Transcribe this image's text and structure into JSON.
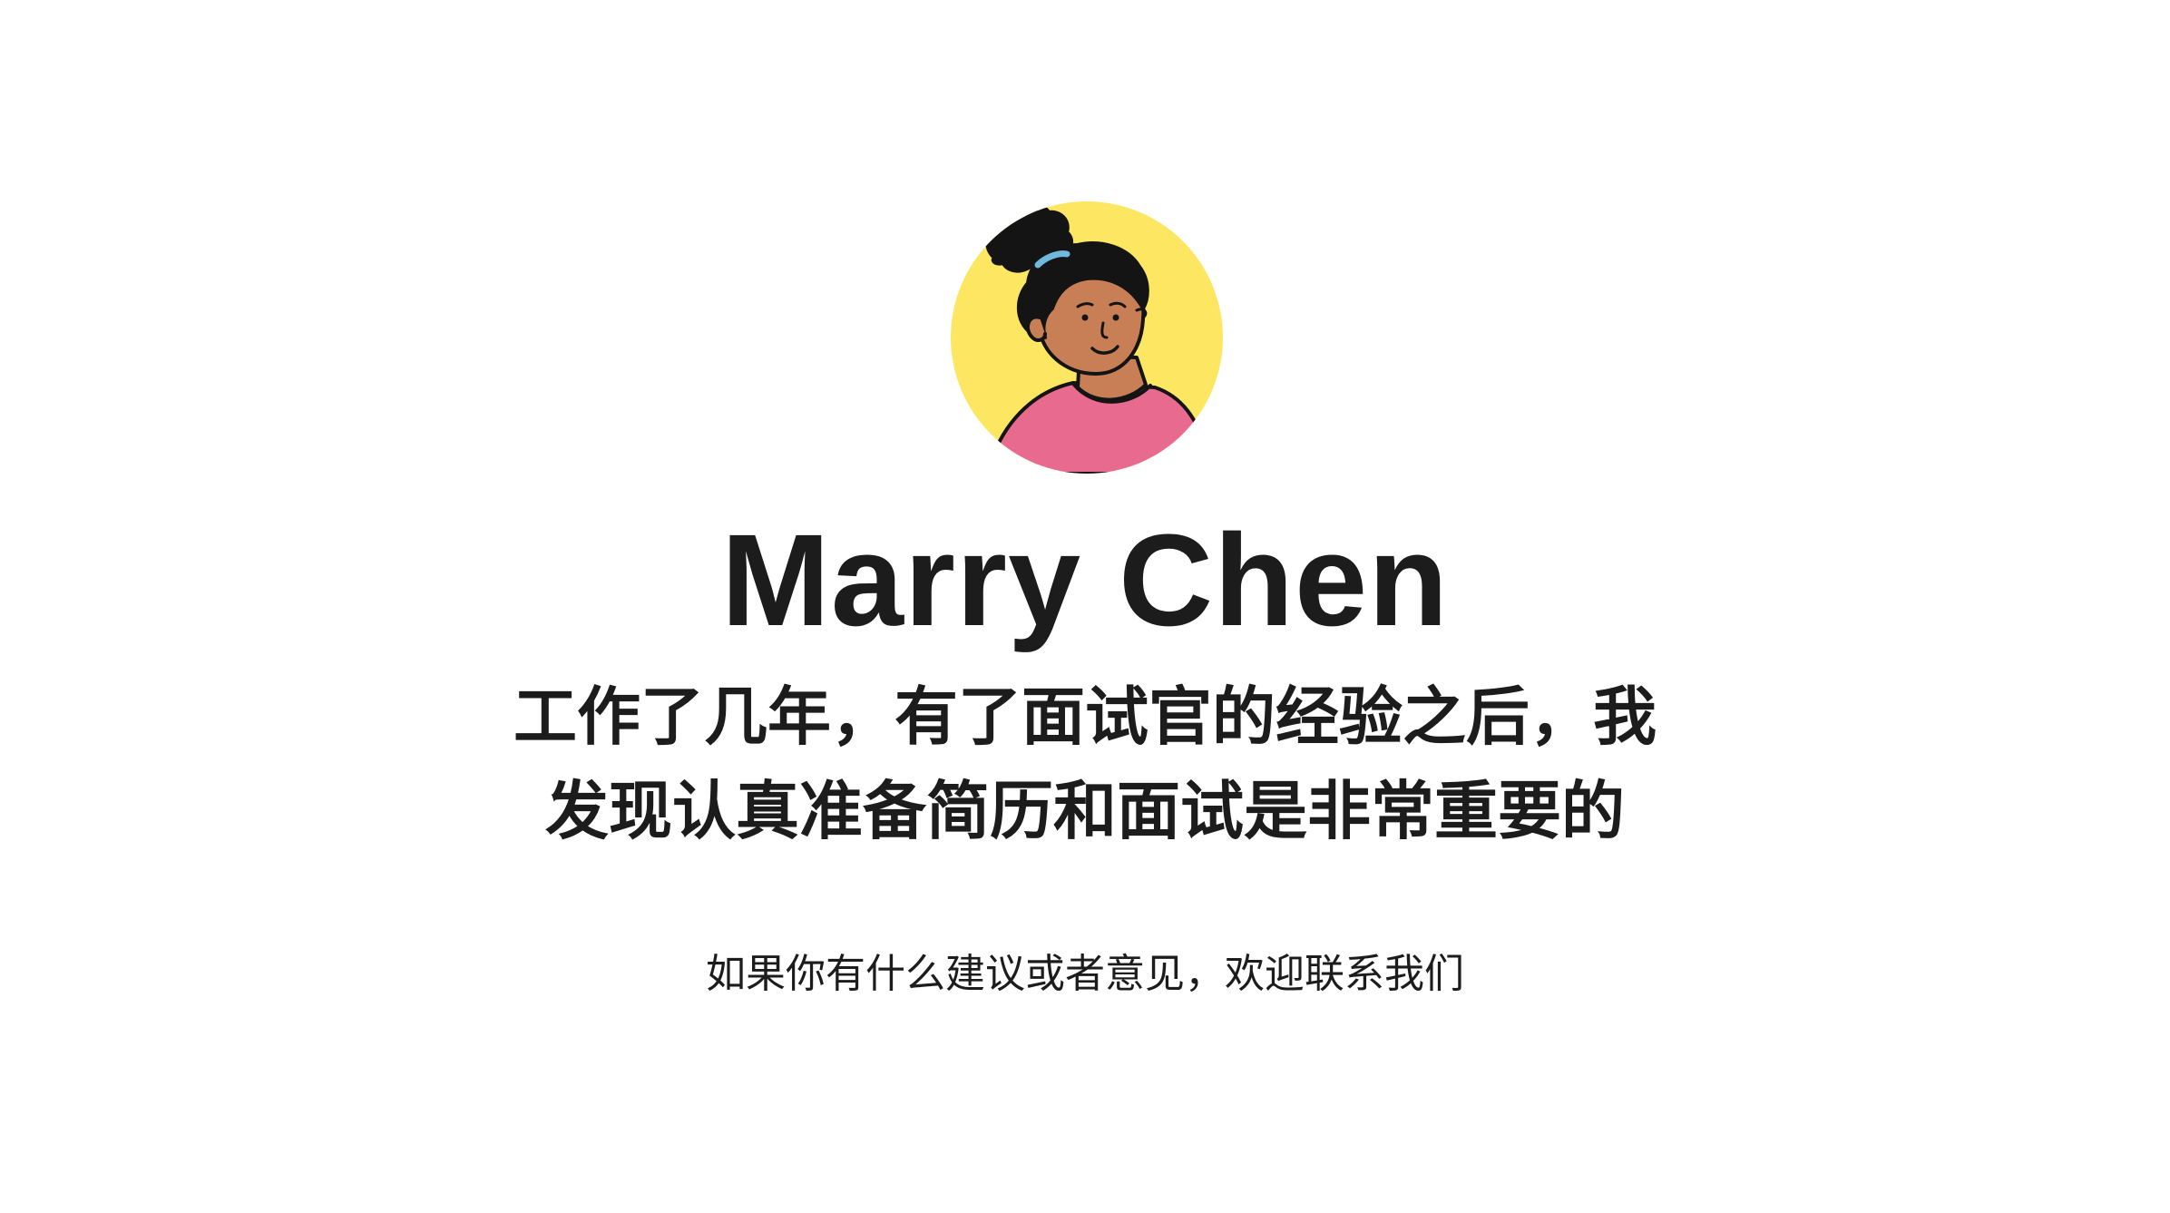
{
  "profile": {
    "avatar_icon": "girl-with-bun-avatar-icon",
    "name": "Marry Chen",
    "intro_line1": "工作了几年，有了面试官的经验之后，我",
    "intro_line2": "发现认真准备简历和面试是非常重要的"
  },
  "footer": {
    "contact_text": "如果你有什么建议或者意见，欢迎联系我们"
  },
  "colors": {
    "avatar_background": "#FDE762",
    "shirt": "#E96A8F",
    "skin": "#C97F55",
    "hair": "#141414",
    "hair_tie": "#6FB8DE",
    "text": "#1C1C1C"
  }
}
